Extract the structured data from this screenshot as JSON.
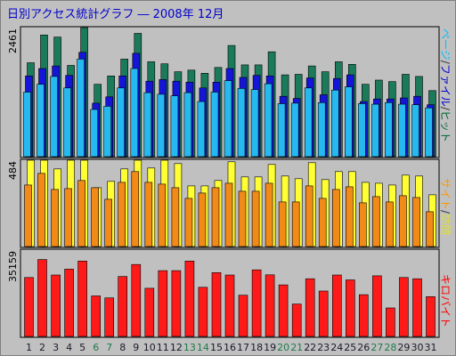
{
  "chart_data": [
    {
      "type": "bar",
      "title": "日別アクセス統計グラフ ― 2008年 12月",
      "panel": "hits",
      "ytick": "2461",
      "ylabel_parts": [
        {
          "text": "ページ",
          "color": "#00bfff"
        },
        {
          "text": "/",
          "color": "#333333"
        },
        {
          "text": "ファイル",
          "color": "#0000cc"
        },
        {
          "text": "/",
          "color": "#333333"
        },
        {
          "text": "ヒット",
          "color": "#006633"
        }
      ],
      "categories": [
        "1",
        "2",
        "3",
        "4",
        "5",
        "6",
        "7",
        "8",
        "9",
        "10",
        "11",
        "12",
        "13",
        "14",
        "15",
        "16",
        "17",
        "18",
        "19",
        "20",
        "21",
        "22",
        "23",
        "24",
        "25",
        "26",
        "27",
        "28",
        "29",
        "30",
        "31"
      ],
      "ylim": [
        0,
        2461
      ],
      "series": [
        {
          "name": "ヒット",
          "color": "#1b7a5a",
          "values": [
            1790,
            2320,
            2280,
            1740,
            2461,
            1380,
            1540,
            1860,
            2350,
            1810,
            1770,
            1620,
            1650,
            1590,
            1700,
            2120,
            1750,
            1750,
            2000,
            1560,
            1570,
            1730,
            1620,
            1810,
            1760,
            1380,
            1460,
            1430,
            1570,
            1530,
            1260
          ]
        },
        {
          "name": "ファイル",
          "color": "#1515d8",
          "values": [
            1540,
            1680,
            1730,
            1550,
            1990,
            1020,
            1140,
            1540,
            1970,
            1440,
            1470,
            1440,
            1420,
            1310,
            1420,
            1680,
            1510,
            1550,
            1540,
            1150,
            1110,
            1500,
            1180,
            1490,
            1560,
            1050,
            1100,
            1100,
            1120,
            1150,
            990
          ]
        },
        {
          "name": "ページ",
          "color": "#25b9f0",
          "values": [
            1230,
            1380,
            1530,
            1310,
            1860,
            900,
            960,
            1310,
            1680,
            1220,
            1190,
            1160,
            1220,
            1050,
            1230,
            1450,
            1300,
            1280,
            1390,
            1010,
            1020,
            1310,
            1030,
            1270,
            1330,
            1010,
            1000,
            1030,
            1000,
            990,
            930
          ]
        }
      ]
    },
    {
      "type": "bar",
      "panel": "visits",
      "ytick": "484",
      "ylabel_parts": [
        {
          "text": "サイト",
          "color": "#ff9900"
        },
        {
          "text": "/",
          "color": "#333333"
        },
        {
          "text": "訪問",
          "color": "#dddd44"
        }
      ],
      "ylim": [
        0,
        484
      ],
      "series": [
        {
          "name": "訪問",
          "color": "#ffff33",
          "values": [
            484,
            484,
            435,
            484,
            484,
            330,
            365,
            435,
            484,
            440,
            484,
            465,
            340,
            340,
            370,
            475,
            390,
            390,
            460,
            395,
            380,
            470,
            375,
            420,
            420,
            360,
            355,
            345,
            400,
            395,
            290
          ]
        },
        {
          "name": "サイト",
          "color": "#f28a18",
          "values": [
            345,
            410,
            320,
            325,
            370,
            330,
            265,
            360,
            420,
            360,
            350,
            330,
            270,
            300,
            330,
            355,
            310,
            310,
            355,
            250,
            250,
            340,
            270,
            320,
            335,
            245,
            280,
            250,
            285,
            275,
            195
          ]
        }
      ]
    },
    {
      "type": "bar",
      "panel": "kilobytes",
      "ytick": "35159",
      "ylabel_parts": [
        {
          "text": "キロバイト",
          "color": "#ff0000"
        }
      ],
      "ylim": [
        0,
        35159
      ],
      "series": [
        {
          "name": "キロバイト",
          "color": "#ff1a1a",
          "values": [
            24000,
            31300,
            25000,
            27400,
            30700,
            16500,
            15700,
            24400,
            29300,
            19600,
            26800,
            26800,
            30700,
            20000,
            26000,
            25000,
            16800,
            27100,
            25100,
            21000,
            13200,
            23500,
            18500,
            25000,
            23000,
            17000,
            24700,
            11600,
            24000,
            23500,
            16200
          ]
        }
      ]
    }
  ],
  "x_label_colors": {
    "weekday": "#1a1a2a",
    "weekend": "#1e7a4a"
  },
  "weekend_days": [
    "6",
    "7",
    "13",
    "14",
    "20",
    "21",
    "27",
    "28"
  ]
}
